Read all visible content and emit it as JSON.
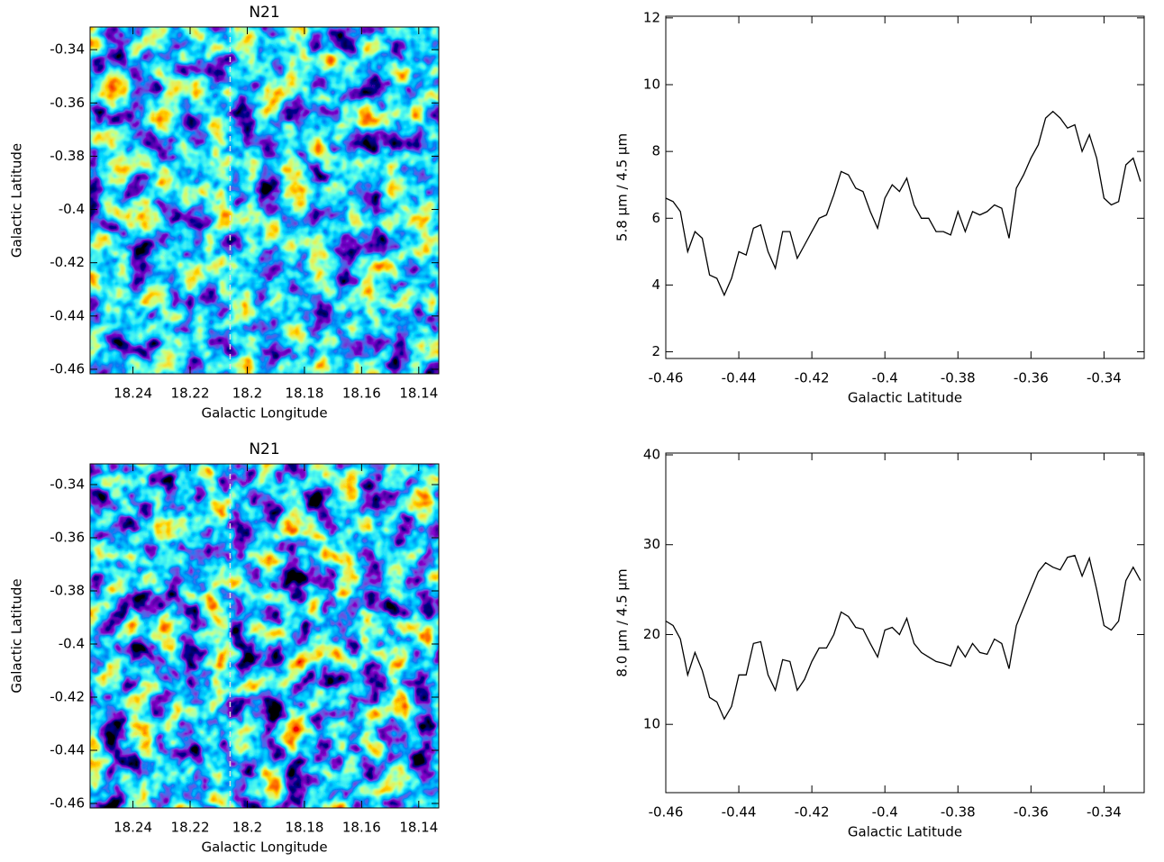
{
  "chart_data": [
    {
      "type": "image",
      "title": "N21",
      "x_label": "Galactic Longitude",
      "y_label": "Galactic Latitude",
      "xlim": [
        18.255,
        18.133
      ],
      "ylim": [
        -0.4617,
        -0.3315
      ],
      "xticks": [
        18.24,
        18.22,
        18.2,
        18.18,
        18.16,
        18.14
      ],
      "yticks": [
        -0.46,
        -0.44,
        -0.42,
        -0.4,
        -0.38,
        -0.36,
        -0.34
      ],
      "cut_x": 18.206
    },
    {
      "type": "line",
      "x_label": "Galactic Latitude",
      "y_label": "5.8 μm / 4.5 μm",
      "xlim": [
        -0.46,
        -0.329
      ],
      "ylim": [
        1.8,
        12.05
      ],
      "xticks": [
        -0.46,
        -0.44,
        -0.42,
        -0.4,
        -0.38,
        -0.36,
        -0.34
      ],
      "yticks": [
        2,
        4,
        6,
        8,
        10,
        12
      ],
      "color": "#000000",
      "x": [
        -0.46,
        -0.458,
        -0.456,
        -0.454,
        -0.452,
        -0.45,
        -0.448,
        -0.446,
        -0.444,
        -0.442,
        -0.44,
        -0.438,
        -0.436,
        -0.434,
        -0.432,
        -0.43,
        -0.428,
        -0.426,
        -0.424,
        -0.422,
        -0.42,
        -0.418,
        -0.416,
        -0.414,
        -0.412,
        -0.41,
        -0.408,
        -0.406,
        -0.404,
        -0.402,
        -0.4,
        -0.398,
        -0.396,
        -0.394,
        -0.392,
        -0.39,
        -0.388,
        -0.386,
        -0.384,
        -0.382,
        -0.38,
        -0.378,
        -0.376,
        -0.374,
        -0.372,
        -0.37,
        -0.368,
        -0.366,
        -0.364,
        -0.362,
        -0.36,
        -0.358,
        -0.356,
        -0.354,
        -0.352,
        -0.35,
        -0.348,
        -0.346,
        -0.344,
        -0.342,
        -0.34,
        -0.338,
        -0.336,
        -0.334,
        -0.332,
        -0.33
      ],
      "values": [
        6.6,
        6.5,
        6.2,
        5.0,
        5.6,
        5.4,
        4.3,
        4.2,
        3.7,
        4.2,
        5.0,
        4.9,
        5.7,
        5.8,
        5.0,
        4.5,
        5.6,
        5.6,
        4.8,
        5.2,
        5.6,
        6.0,
        6.1,
        6.7,
        7.4,
        7.3,
        6.9,
        6.8,
        6.2,
        5.7,
        6.6,
        7.0,
        6.8,
        7.2,
        6.4,
        6.0,
        6.0,
        5.6,
        5.6,
        5.5,
        6.2,
        5.6,
        6.2,
        6.1,
        6.2,
        6.4,
        6.3,
        5.4,
        6.9,
        7.3,
        7.8,
        8.2,
        9.0,
        9.2,
        9.0,
        8.7,
        8.8,
        8.0,
        8.5,
        7.8,
        6.6,
        6.4,
        6.5,
        7.6,
        7.8,
        7.1
      ]
    },
    {
      "type": "image",
      "title": "N21",
      "x_label": "Galactic Longitude",
      "y_label": "Galactic Latitude",
      "xlim": [
        18.255,
        18.133
      ],
      "ylim": [
        -0.4617,
        -0.3322
      ],
      "xticks": [
        18.24,
        18.22,
        18.2,
        18.18,
        18.16,
        18.14
      ],
      "yticks": [
        -0.46,
        -0.44,
        -0.42,
        -0.4,
        -0.38,
        -0.36,
        -0.34
      ],
      "cut_x": 18.206
    },
    {
      "type": "line",
      "x_label": "Galactic Latitude",
      "y_label": "8.0 μm / 4.5 μm",
      "xlim": [
        -0.46,
        -0.329
      ],
      "ylim": [
        2.4,
        40.2
      ],
      "xticks": [
        -0.46,
        -0.44,
        -0.42,
        -0.4,
        -0.38,
        -0.36,
        -0.34
      ],
      "yticks": [
        10,
        20,
        30,
        40
      ],
      "color": "#000000",
      "x": [
        -0.46,
        -0.458,
        -0.456,
        -0.454,
        -0.452,
        -0.45,
        -0.448,
        -0.446,
        -0.444,
        -0.442,
        -0.44,
        -0.438,
        -0.436,
        -0.434,
        -0.432,
        -0.43,
        -0.428,
        -0.426,
        -0.424,
        -0.422,
        -0.42,
        -0.418,
        -0.416,
        -0.414,
        -0.412,
        -0.41,
        -0.408,
        -0.406,
        -0.404,
        -0.402,
        -0.4,
        -0.398,
        -0.396,
        -0.394,
        -0.392,
        -0.39,
        -0.388,
        -0.386,
        -0.384,
        -0.382,
        -0.38,
        -0.378,
        -0.376,
        -0.374,
        -0.372,
        -0.37,
        -0.368,
        -0.366,
        -0.364,
        -0.362,
        -0.36,
        -0.358,
        -0.356,
        -0.354,
        -0.352,
        -0.35,
        -0.348,
        -0.346,
        -0.344,
        -0.342,
        -0.34,
        -0.338,
        -0.336,
        -0.334,
        -0.332,
        -0.33
      ],
      "values": [
        21.5,
        21,
        19.5,
        15.5,
        18,
        16,
        13,
        12.5,
        10.6,
        12,
        15.5,
        15.5,
        19,
        19.2,
        15.5,
        13.8,
        17.2,
        17,
        13.8,
        15,
        17,
        18.5,
        18.5,
        20,
        22.5,
        22,
        20.8,
        20.6,
        19,
        17.5,
        20.5,
        20.8,
        20,
        21.8,
        19,
        18,
        17.5,
        17,
        16.8,
        16.5,
        18.7,
        17.5,
        19,
        18,
        17.8,
        19.5,
        19,
        16.2,
        21,
        23,
        25,
        27,
        28,
        27.5,
        27.2,
        28.6,
        28.8,
        26.5,
        28.5,
        25,
        21,
        20.5,
        21.5,
        26,
        27.5,
        26
      ]
    }
  ]
}
